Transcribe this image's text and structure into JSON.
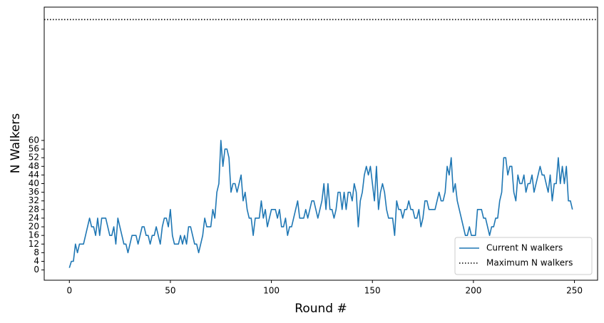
{
  "chart_data": {
    "type": "line",
    "xlabel": "Round #",
    "ylabel": "N Walkers",
    "x": [
      0,
      1,
      2,
      3,
      4,
      5,
      6,
      7,
      8,
      9,
      10,
      11,
      12,
      13,
      14,
      15,
      16,
      17,
      18,
      19,
      20,
      21,
      22,
      23,
      24,
      25,
      26,
      27,
      28,
      29,
      30,
      31,
      32,
      33,
      34,
      35,
      36,
      37,
      38,
      39,
      40,
      41,
      42,
      43,
      44,
      45,
      46,
      47,
      48,
      49,
      50,
      51,
      52,
      53,
      54,
      55,
      56,
      57,
      58,
      59,
      60,
      61,
      62,
      63,
      64,
      65,
      66,
      67,
      68,
      69,
      70,
      71,
      72,
      73,
      74,
      75,
      76,
      77,
      78,
      79,
      80,
      81,
      82,
      83,
      84,
      85,
      86,
      87,
      88,
      89,
      90,
      91,
      92,
      93,
      94,
      95,
      96,
      97,
      98,
      99,
      100,
      101,
      102,
      103,
      104,
      105,
      106,
      107,
      108,
      109,
      110,
      111,
      112,
      113,
      114,
      115,
      116,
      117,
      118,
      119,
      120,
      121,
      122,
      123,
      124,
      125,
      126,
      127,
      128,
      129,
      130,
      131,
      132,
      133,
      134,
      135,
      136,
      137,
      138,
      139,
      140,
      141,
      142,
      143,
      144,
      145,
      146,
      147,
      148,
      149,
      150,
      151,
      152,
      153,
      154,
      155,
      156,
      157,
      158,
      159,
      160,
      161,
      162,
      163,
      164,
      165,
      166,
      167,
      168,
      169,
      170,
      171,
      172,
      173,
      174,
      175,
      176,
      177,
      178,
      179,
      180,
      181,
      182,
      183,
      184,
      185,
      186,
      187,
      188,
      189,
      190,
      191,
      192,
      193,
      194,
      195,
      196,
      197,
      198,
      199,
      200,
      201,
      202,
      203,
      204,
      205,
      206,
      207,
      208,
      209,
      210,
      211,
      212,
      213,
      214,
      215,
      216,
      217,
      218,
      219,
      220,
      221,
      222,
      223,
      224,
      225,
      226,
      227,
      228,
      229,
      230,
      231,
      232,
      233,
      234,
      235,
      236,
      237,
      238,
      239,
      240,
      241,
      242,
      243,
      244,
      245,
      246,
      247,
      248,
      249
    ],
    "series": [
      {
        "name": "Current N walkers",
        "color": "#1f77b4",
        "values": [
          1,
          4,
          4,
          12,
          8,
          12,
          12,
          12,
          16,
          20,
          24,
          20,
          20,
          16,
          24,
          16,
          24,
          24,
          24,
          20,
          16,
          16,
          20,
          12,
          24,
          20,
          16,
          12,
          12,
          8,
          12,
          16,
          16,
          16,
          12,
          16,
          20,
          20,
          16,
          16,
          12,
          16,
          16,
          20,
          16,
          12,
          20,
          24,
          24,
          20,
          28,
          16,
          12,
          12,
          12,
          16,
          12,
          16,
          12,
          20,
          20,
          16,
          12,
          12,
          8,
          12,
          16,
          24,
          20,
          20,
          20,
          28,
          24,
          36,
          40,
          60,
          48,
          56,
          56,
          52,
          36,
          40,
          40,
          36,
          40,
          44,
          32,
          36,
          28,
          24,
          24,
          16,
          24,
          24,
          24,
          32,
          24,
          28,
          20,
          24,
          28,
          28,
          28,
          24,
          28,
          20,
          20,
          24,
          16,
          20,
          20,
          24,
          28,
          32,
          24,
          24,
          24,
          28,
          24,
          28,
          32,
          32,
          28,
          24,
          28,
          32,
          40,
          28,
          40,
          28,
          28,
          24,
          28,
          36,
          36,
          28,
          36,
          28,
          36,
          36,
          32,
          40,
          36,
          20,
          32,
          36,
          44,
          48,
          44,
          48,
          40,
          32,
          48,
          28,
          36,
          40,
          36,
          28,
          24,
          24,
          24,
          16,
          32,
          28,
          28,
          24,
          28,
          28,
          32,
          28,
          28,
          24,
          24,
          28,
          20,
          24,
          32,
          32,
          28,
          28,
          28,
          28,
          32,
          36,
          32,
          32,
          36,
          48,
          44,
          52,
          36,
          40,
          32,
          28,
          24,
          20,
          16,
          16,
          20,
          16,
          16,
          16,
          28,
          28,
          28,
          24,
          24,
          20,
          16,
          20,
          20,
          24,
          24,
          32,
          36,
          52,
          52,
          44,
          48,
          48,
          36,
          32,
          44,
          40,
          40,
          44,
          36,
          40,
          40,
          44,
          36,
          40,
          44,
          48,
          44,
          44,
          40,
          36,
          44,
          32,
          40,
          40,
          52,
          40,
          48,
          40,
          48,
          32,
          32,
          28
        ]
      }
    ],
    "max_line": {
      "name": "Maximum N walkers",
      "value": 116,
      "color": "#000000",
      "style": "dotted"
    },
    "xlim": [
      -12.45,
      261.45
    ],
    "ylim": [
      -4.75,
      121.75
    ],
    "xticks": [
      0,
      50,
      100,
      150,
      200,
      250
    ],
    "yticks": [
      0,
      4,
      8,
      12,
      16,
      20,
      24,
      28,
      32,
      36,
      40,
      44,
      48,
      52,
      56,
      60
    ],
    "legend": "lower right"
  }
}
